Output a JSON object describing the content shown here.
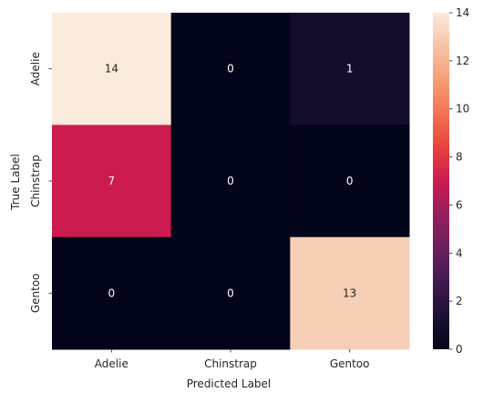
{
  "chart_data": {
    "type": "heatmap",
    "title": "",
    "xlabel": "Predicted Label",
    "ylabel": "True Label",
    "x_categories": [
      "Adelie",
      "Chinstrap",
      "Gentoo"
    ],
    "y_categories": [
      "Adelie",
      "Chinstrap",
      "Gentoo"
    ],
    "values": [
      [
        14,
        0,
        1
      ],
      [
        7,
        0,
        0
      ],
      [
        0,
        0,
        13
      ]
    ],
    "colorbar": {
      "range": [
        0,
        14
      ],
      "ticks": [
        0,
        2,
        4,
        6,
        8,
        10,
        12,
        14
      ]
    },
    "colormap": "rocket",
    "annotation_colors": {
      "on_dark": "#ffffff",
      "on_light": "#262626"
    }
  }
}
